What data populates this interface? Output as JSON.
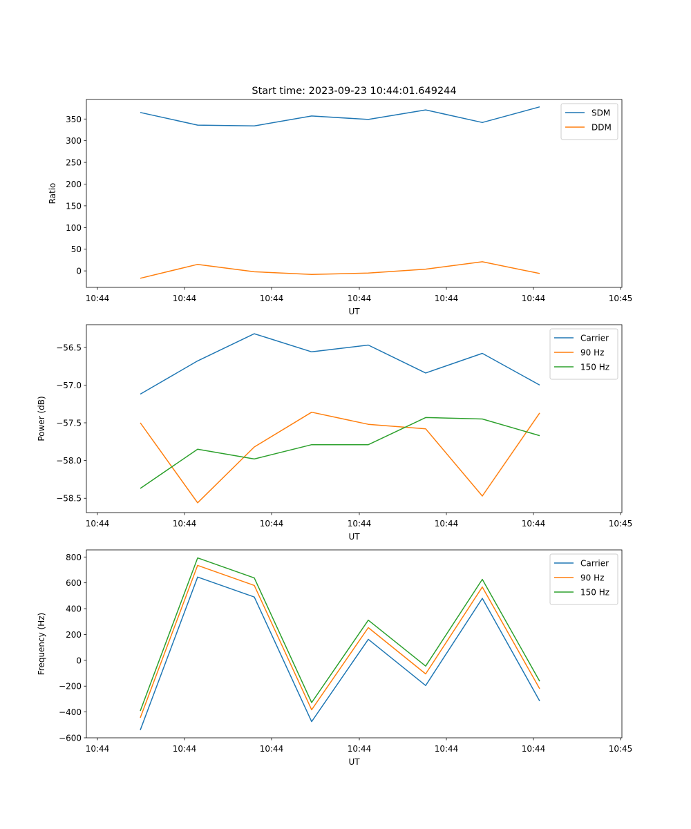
{
  "colors": {
    "blue": "#1f77b4",
    "orange": "#ff7f0e",
    "green": "#2ca02c"
  },
  "chart_data": [
    {
      "type": "line",
      "title": "Start time: 2023-09-23 10:44:01.649244",
      "xlabel": "UT",
      "ylabel": "Ratio",
      "x_tick_labels": [
        "10:44",
        "10:44",
        "10:44",
        "10:44",
        "10:44",
        "10:44",
        "10:45"
      ],
      "y_ticks": [
        0,
        50,
        100,
        150,
        200,
        250,
        300,
        350
      ],
      "ylim": [
        -38,
        395
      ],
      "series": [
        {
          "name": "SDM",
          "color": "#1f77b4",
          "values": [
            365,
            336,
            334,
            357,
            349,
            371,
            342,
            378
          ]
        },
        {
          "name": "DDM",
          "color": "#ff7f0e",
          "values": [
            -17,
            15,
            -2,
            -8,
            -5,
            4,
            21,
            -6
          ]
        }
      ]
    },
    {
      "type": "line",
      "title": "",
      "xlabel": "UT",
      "ylabel": "Power (dB)",
      "x_tick_labels": [
        "10:44",
        "10:44",
        "10:44",
        "10:44",
        "10:44",
        "10:44",
        "10:45"
      ],
      "y_ticks": [
        -58.5,
        -58.0,
        -57.5,
        -57.0,
        -56.5
      ],
      "y_tick_labels": [
        "−58.5",
        "−58.0",
        "−57.5",
        "−57.0",
        "−56.5"
      ],
      "ylim": [
        -58.69,
        -56.2
      ],
      "series": [
        {
          "name": "Carrier",
          "color": "#1f77b4",
          "values": [
            -57.12,
            -56.68,
            -56.32,
            -56.56,
            -56.47,
            -56.84,
            -56.58,
            -57.0
          ]
        },
        {
          "name": "90 Hz",
          "color": "#ff7f0e",
          "values": [
            -57.5,
            -58.56,
            -57.82,
            -57.36,
            -57.52,
            -57.58,
            -58.47,
            -57.37
          ]
        },
        {
          "name": "150 Hz",
          "color": "#2ca02c",
          "values": [
            -58.37,
            -57.85,
            -57.98,
            -57.79,
            -57.79,
            -57.43,
            -57.45,
            -57.67
          ]
        }
      ]
    },
    {
      "type": "line",
      "title": "",
      "xlabel": "UT",
      "ylabel": "Frequency (Hz)",
      "x_tick_labels": [
        "10:44",
        "10:44",
        "10:44",
        "10:44",
        "10:44",
        "10:44",
        "10:45"
      ],
      "y_ticks": [
        -600,
        -400,
        -200,
        0,
        200,
        400,
        600,
        800
      ],
      "y_tick_labels": [
        "−600",
        "−400",
        "−200",
        "0",
        "200",
        "400",
        "600",
        "800"
      ],
      "ylim": [
        -600,
        855
      ],
      "series": [
        {
          "name": "Carrier",
          "color": "#1f77b4",
          "values": [
            -540,
            645,
            490,
            -475,
            163,
            -195,
            480,
            -315
          ]
        },
        {
          "name": "90 Hz",
          "color": "#ff7f0e",
          "values": [
            -445,
            735,
            580,
            -383,
            253,
            -105,
            568,
            -220
          ]
        },
        {
          "name": "150 Hz",
          "color": "#2ca02c",
          "values": [
            -392,
            793,
            638,
            -327,
            311,
            -45,
            627,
            -162
          ]
        }
      ]
    }
  ]
}
